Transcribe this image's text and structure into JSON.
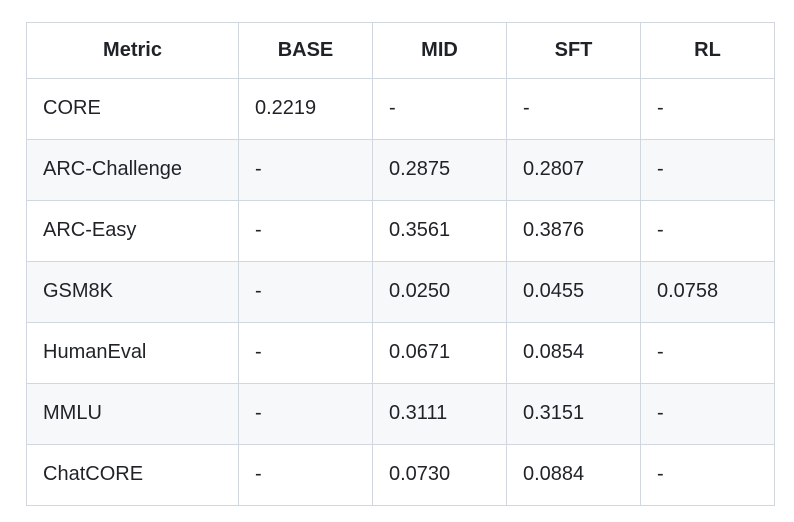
{
  "colors": {
    "border-color": "#d0d7de",
    "stripe-color": "#f6f8fa",
    "text-color": "#1f2328",
    "bg-color": "#ffffff"
  },
  "table": {
    "columns": [
      "Metric",
      "BASE",
      "MID",
      "SFT",
      "RL"
    ],
    "rows": [
      {
        "metric": "CORE",
        "cells": [
          "0.2219",
          "-",
          "-",
          "-"
        ]
      },
      {
        "metric": "ARC-Challenge",
        "cells": [
          "-",
          "0.2875",
          "0.2807",
          "-"
        ]
      },
      {
        "metric": "ARC-Easy",
        "cells": [
          "-",
          "0.3561",
          "0.3876",
          "-"
        ]
      },
      {
        "metric": "GSM8K",
        "cells": [
          "-",
          "0.0250",
          "0.0455",
          "0.0758"
        ]
      },
      {
        "metric": "HumanEval",
        "cells": [
          "-",
          "0.0671",
          "0.0854",
          "-"
        ]
      },
      {
        "metric": "MMLU",
        "cells": [
          "-",
          "0.3111",
          "0.3151",
          "-"
        ]
      },
      {
        "metric": "ChatCORE",
        "cells": [
          "-",
          "0.0730",
          "0.0884",
          "-"
        ]
      }
    ]
  },
  "chart_data": {
    "type": "table",
    "title": "",
    "categories": [
      "CORE",
      "ARC-Challenge",
      "ARC-Easy",
      "GSM8K",
      "HumanEval",
      "MMLU",
      "ChatCORE"
    ],
    "series": [
      {
        "name": "BASE",
        "values": [
          0.2219,
          null,
          null,
          null,
          null,
          null,
          null
        ]
      },
      {
        "name": "MID",
        "values": [
          null,
          0.2875,
          0.3561,
          0.025,
          0.0671,
          0.3111,
          0.073
        ]
      },
      {
        "name": "SFT",
        "values": [
          null,
          0.2807,
          0.3876,
          0.0455,
          0.0854,
          0.3151,
          0.0884
        ]
      },
      {
        "name": "RL",
        "values": [
          null,
          null,
          null,
          0.0758,
          null,
          null,
          null
        ]
      }
    ]
  }
}
